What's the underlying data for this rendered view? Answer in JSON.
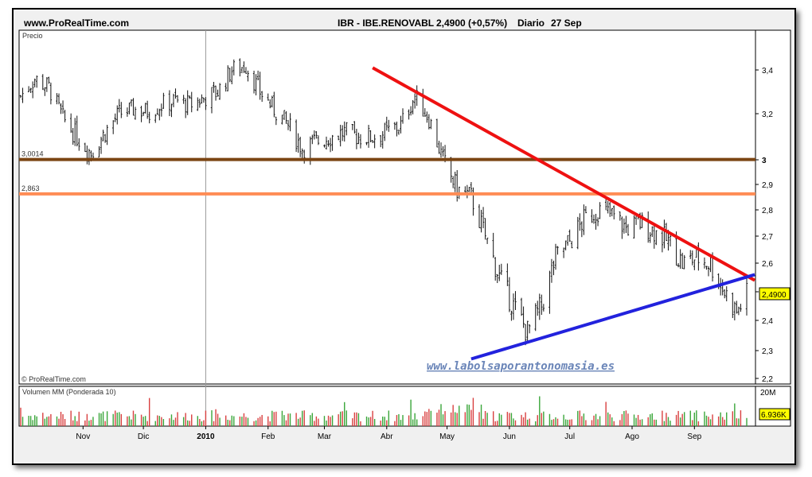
{
  "header": {
    "site": "www.ProRealTime.com",
    "ticker": "IBR - IBE.RENOVABL",
    "price_change": "2,4900 (+0,57%)",
    "period": "Diario",
    "date": "27 Sep"
  },
  "price_panel": {
    "label": "Precio",
    "copyright": "© ProRealTime.com",
    "watermark": "www.labolsaporantonomasia.es",
    "last_price_badge": "2,4900"
  },
  "volume_panel": {
    "label": "Volumen MM (Ponderada 10)",
    "top_tick": "20M",
    "last_volume_badge": "6.936K"
  },
  "colors": {
    "resistance_trend": "#ee1111",
    "support_trend": "#2222dd",
    "level_3_0014": "#7b4513",
    "level_2_863": "#ff8c55",
    "volume_up": "#3aa63a",
    "volume_down": "#d94040",
    "candle": "#111111"
  },
  "chart_data": [
    {
      "type": "candlestick",
      "title": "IBR - IBE.RENOVABL",
      "ylabel": "Precio",
      "ylim": [
        2.2,
        3.5
      ],
      "y_ticks": [
        "2,2",
        "2,3",
        "2,4",
        "2,5",
        "2,6",
        "2,7",
        "2,8",
        "2,9",
        "3",
        "3,2",
        "3,4"
      ],
      "x_ticks": [
        "Nov",
        "Dic",
        "2010",
        "Feb",
        "Mar",
        "Abr",
        "May",
        "Jun",
        "Jul",
        "Ago",
        "Sep"
      ],
      "close_series": [
        [
          "2009-10-01",
          3.28
        ],
        [
          "2009-10-08",
          3.36
        ],
        [
          "2009-10-15",
          3.32
        ],
        [
          "2009-10-22",
          3.18
        ],
        [
          "2009-10-29",
          3.1
        ],
        [
          "2009-11-05",
          3.03
        ],
        [
          "2009-11-12",
          3.12
        ],
        [
          "2009-11-19",
          3.2
        ],
        [
          "2009-11-26",
          3.22
        ],
        [
          "2009-12-03",
          3.21
        ],
        [
          "2009-12-10",
          3.24
        ],
        [
          "2009-12-17",
          3.26
        ],
        [
          "2009-12-24",
          3.24
        ],
        [
          "2009-12-31",
          3.27
        ],
        [
          "2010-01-07",
          3.3
        ],
        [
          "2010-01-14",
          3.4
        ],
        [
          "2010-01-21",
          3.42
        ],
        [
          "2010-01-28",
          3.3
        ],
        [
          "2010-02-04",
          3.22
        ],
        [
          "2010-02-11",
          3.15
        ],
        [
          "2010-02-18",
          3.05
        ],
        [
          "2010-02-25",
          3.08
        ],
        [
          "2010-03-04",
          3.1
        ],
        [
          "2010-03-11",
          3.12
        ],
        [
          "2010-03-18",
          3.1
        ],
        [
          "2010-03-25",
          3.1
        ],
        [
          "2010-04-01",
          3.12
        ],
        [
          "2010-04-08",
          3.15
        ],
        [
          "2010-04-15",
          3.28
        ],
        [
          "2010-04-22",
          3.18
        ],
        [
          "2010-04-29",
          3.0
        ],
        [
          "2010-05-06",
          2.88
        ],
        [
          "2010-05-13",
          2.85
        ],
        [
          "2010-05-20",
          2.7
        ],
        [
          "2010-05-27",
          2.55
        ],
        [
          "2010-06-03",
          2.45
        ],
        [
          "2010-06-10",
          2.36
        ],
        [
          "2010-06-17",
          2.45
        ],
        [
          "2010-06-24",
          2.62
        ],
        [
          "2010-07-01",
          2.68
        ],
        [
          "2010-07-08",
          2.76
        ],
        [
          "2010-07-15",
          2.8
        ],
        [
          "2010-07-22",
          2.78
        ],
        [
          "2010-07-29",
          2.73
        ],
        [
          "2010-08-05",
          2.75
        ],
        [
          "2010-08-12",
          2.72
        ],
        [
          "2010-08-19",
          2.68
        ],
        [
          "2010-08-26",
          2.6
        ],
        [
          "2010-09-02",
          2.62
        ],
        [
          "2010-09-09",
          2.6
        ],
        [
          "2010-09-16",
          2.5
        ],
        [
          "2010-09-22",
          2.43
        ],
        [
          "2010-09-27",
          2.49
        ]
      ],
      "horizontal_levels": [
        {
          "label": "3,0014",
          "value": 3.0014
        },
        {
          "label": "2,863",
          "value": 2.863
        }
      ],
      "trendlines": [
        {
          "name": "resistance",
          "from": [
            "2010-03-25",
            3.41
          ],
          "to": [
            "2010-10-01",
            2.54
          ]
        },
        {
          "name": "support",
          "from": [
            "2010-05-13",
            2.27
          ],
          "to": [
            "2010-10-01",
            2.56
          ]
        }
      ],
      "last_value": 2.49
    },
    {
      "type": "bar",
      "title": "Volumen MM (Ponderada 10)",
      "ylim": [
        0,
        20000000
      ],
      "y_ticks": [
        "20M"
      ],
      "last_value": "6.936K"
    }
  ]
}
